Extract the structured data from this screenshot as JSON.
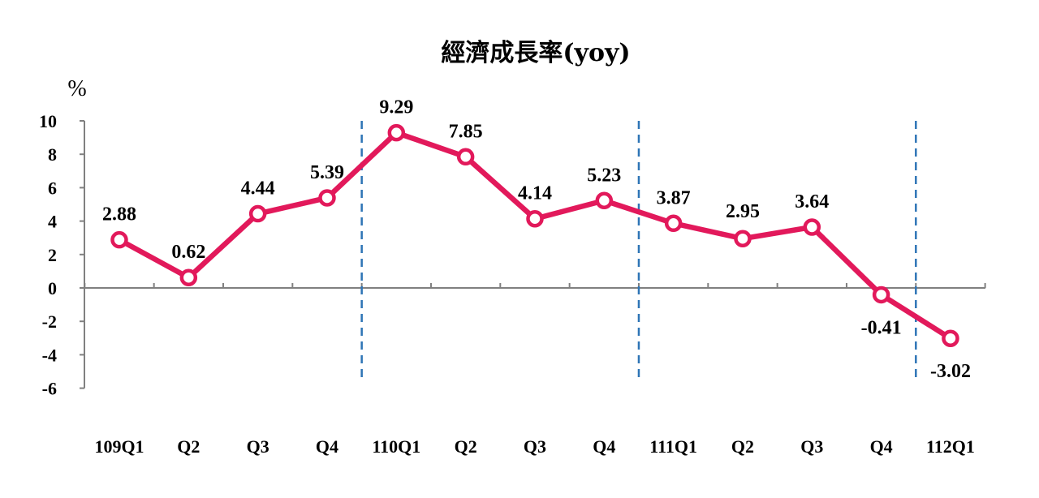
{
  "chart_data": {
    "type": "line",
    "title": "經濟成長率(yoy)",
    "ylabel": "%",
    "xlabel": "",
    "categories": [
      "109Q1",
      "Q2",
      "Q3",
      "Q4",
      "110Q1",
      "Q2",
      "Q3",
      "Q4",
      "111Q1",
      "Q2",
      "Q3",
      "Q4",
      "112Q1"
    ],
    "series": [
      {
        "values": [
          2.88,
          0.62,
          4.44,
          5.39,
          9.29,
          7.85,
          4.14,
          5.23,
          3.87,
          2.95,
          3.64,
          -0.41,
          -3.02
        ],
        "labels": [
          "2.88",
          "0.62",
          "4.44",
          "5.39",
          "9.29",
          "7.85",
          "4.14",
          "5.23",
          "3.87",
          "2.95",
          "3.64",
          "-0.41",
          "-3.02"
        ]
      }
    ],
    "ylim": [
      -6,
      10
    ],
    "yticks": [
      10,
      8,
      6,
      4,
      2,
      0,
      -2,
      -4,
      -6
    ],
    "grid": false,
    "year_dividers_after": [
      "Q4",
      "Q4",
      "Q4"
    ],
    "colors": {
      "line": "#e2195b",
      "marker_fill": "#ffffff",
      "axis": "#808080",
      "divider": "#2e75b6"
    }
  }
}
